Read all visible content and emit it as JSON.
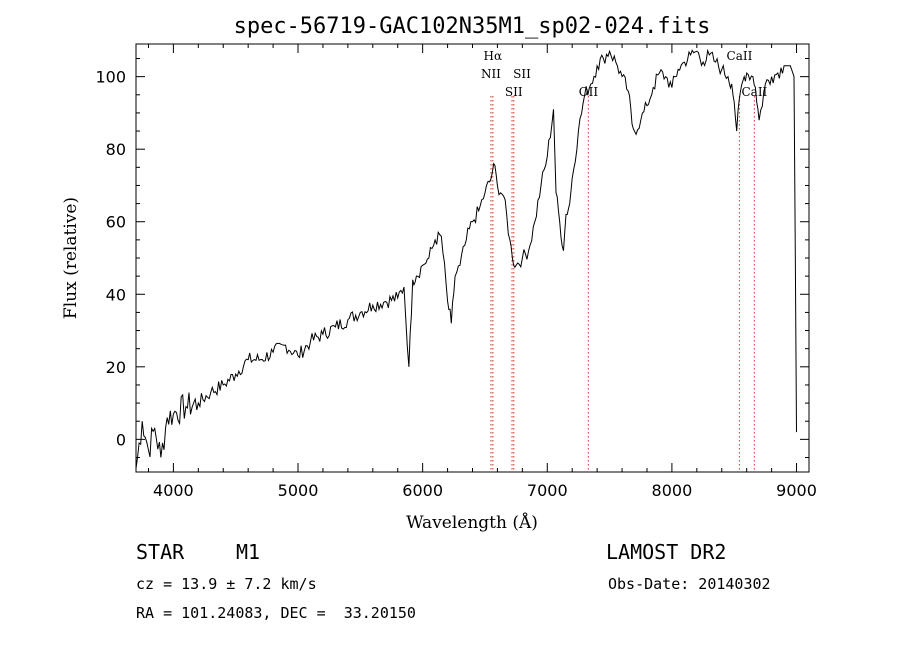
{
  "chart_data": {
    "type": "line",
    "title": "spec-56719-GAC102N35M1_sp02-024.fits",
    "xlabel": "Wavelength (Å)",
    "ylabel": "Flux (relative)",
    "xlim": [
      3700,
      9100
    ],
    "ylim": [
      -9,
      109
    ],
    "xticks": [
      4000,
      5000,
      6000,
      7000,
      8000,
      9000
    ],
    "yticks": [
      0,
      20,
      40,
      60,
      80,
      100
    ],
    "series": [
      {
        "name": "flux",
        "x": [
          3700,
          3750,
          3800,
          3850,
          3900,
          3950,
          4000,
          4100,
          4200,
          4300,
          4400,
          4500,
          4600,
          4700,
          4800,
          4900,
          5000,
          5100,
          5200,
          5300,
          5400,
          5500,
          5600,
          5700,
          5800,
          5850,
          5890,
          5920,
          5950,
          6000,
          6050,
          6100,
          6150,
          6200,
          6230,
          6260,
          6300,
          6350,
          6400,
          6450,
          6500,
          6550,
          6570,
          6600,
          6650,
          6700,
          6720,
          6750,
          6800,
          6850,
          6900,
          6950,
          7000,
          7050,
          7070,
          7100,
          7130,
          7150,
          7180,
          7200,
          7250,
          7300,
          7350,
          7400,
          7450,
          7500,
          7550,
          7600,
          7650,
          7680,
          7700,
          7750,
          7800,
          7850,
          7900,
          7950,
          8000,
          8050,
          8100,
          8150,
          8200,
          8250,
          8300,
          8350,
          8400,
          8450,
          8480,
          8500,
          8520,
          8550,
          8580,
          8600,
          8650,
          8670,
          8700,
          8750,
          8800,
          8850,
          8900,
          8950,
          8980,
          9000
        ],
        "y": [
          -8,
          5,
          -3,
          3,
          -5,
          6,
          7,
          9,
          10,
          13,
          15,
          18,
          22,
          22,
          24,
          26,
          23,
          27,
          29,
          31,
          33,
          35,
          37,
          38,
          39,
          42,
          20,
          44,
          45,
          48,
          50,
          55,
          56,
          38,
          32,
          45,
          48,
          55,
          60,
          63,
          68,
          72,
          76,
          70,
          67,
          55,
          50,
          48,
          50,
          52,
          60,
          70,
          78,
          91,
          68,
          60,
          52,
          62,
          65,
          72,
          85,
          95,
          98,
          103,
          105,
          107,
          104,
          100,
          96,
          87,
          85,
          88,
          92,
          97,
          101,
          100,
          97,
          102,
          104,
          106,
          107,
          104,
          106,
          104,
          102,
          100,
          98,
          93,
          85,
          96,
          100,
          101,
          100,
          97,
          88,
          98,
          100,
          101,
          103,
          103,
          100,
          2
        ]
      }
    ],
    "emission_lines": [
      {
        "label": "Hα",
        "wavelength": 6563,
        "label_row": 1
      },
      {
        "label": "NII",
        "wavelength": 6548,
        "label_row": 2
      },
      {
        "label": "SII",
        "wavelength": 6717,
        "label_row": 2
      },
      {
        "label": "SII",
        "wavelength": 6731,
        "label_row": 3
      },
      {
        "label": "OII",
        "wavelength": 7330,
        "label_row": 3
      },
      {
        "label": "CaII",
        "wavelength": 8542,
        "label_row": 1
      },
      {
        "label": "CaII",
        "wavelength": 8662,
        "label_row": 3
      }
    ],
    "line_color": "#000000",
    "marker_color": "#d9534f"
  },
  "info": {
    "object_type": "STAR",
    "subclass": "M1",
    "survey": "LAMOST DR2",
    "redshift": "cz = 13.9 ± 7.2 km/s",
    "obs_date": "Obs-Date: 20140302",
    "coords": "RA = 101.24083, DEC =  33.20150"
  }
}
